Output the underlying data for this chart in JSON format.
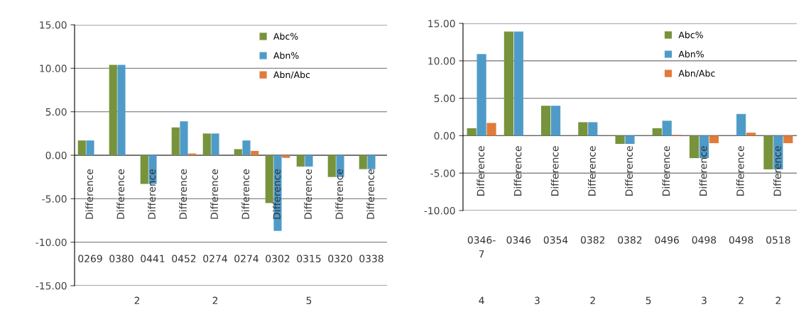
{
  "chart_data": [
    {
      "type": "bar",
      "categories": [
        "0269",
        "0380",
        "0441",
        "0452",
        "0274",
        "0274",
        "0302",
        "0315",
        "0320",
        "0338"
      ],
      "series": [
        {
          "name": "Abc%",
          "color": "#77933c",
          "values": [
            1.7,
            10.4,
            -3.3,
            3.2,
            2.5,
            0.7,
            -5.5,
            -1.3,
            -2.5,
            -1.6
          ]
        },
        {
          "name": "Abn%",
          "color": "#4f9bc8",
          "values": [
            1.7,
            10.4,
            -3.3,
            3.9,
            2.5,
            1.7,
            -8.7,
            -1.3,
            -2.5,
            -1.6
          ]
        },
        {
          "name": "Abn/Abc",
          "color": "#e07b39",
          "values": [
            0,
            0,
            0,
            0.2,
            0,
            0.5,
            -0.3,
            0,
            0,
            0
          ]
        }
      ],
      "annotations": [
        "Difference",
        "Difference",
        "Difference",
        "Difference",
        "Difference",
        "Difference",
        "Difference",
        "Difference",
        "Difference",
        "Difference",
        "2",
        "2",
        "5"
      ],
      "ylim": [
        -15,
        15
      ],
      "yticks": [
        {
          "value": -15,
          "label": "-15.00"
        },
        {
          "value": -10,
          "label": "-10.00"
        },
        {
          "value": -5,
          "label": "-5.00"
        },
        {
          "value": 0,
          "label": "0.00"
        },
        {
          "value": 5,
          "label": "5.00"
        },
        {
          "value": 10,
          "label": "10.00"
        },
        {
          "value": 15,
          "label": "15.00"
        }
      ],
      "grid": "y",
      "legend": "top right"
    },
    {
      "type": "bar",
      "categories": [
        "0346-\n7",
        "0346",
        "0354",
        "0382",
        "0382",
        "0496",
        "0498",
        "0498",
        "0518"
      ],
      "series": [
        {
          "name": "Abc%",
          "color": "#77933c",
          "values": [
            1.0,
            13.9,
            4.0,
            1.8,
            -1.1,
            1.0,
            -3.0,
            0,
            -4.5
          ]
        },
        {
          "name": "Abn%",
          "color": "#4f9bc8",
          "values": [
            10.9,
            13.9,
            4.0,
            1.8,
            -1.1,
            2.0,
            -3.0,
            2.9,
            -4.5
          ]
        },
        {
          "name": "Abn/Abc",
          "color": "#e07b39",
          "values": [
            1.7,
            0,
            0,
            0,
            0,
            0.1,
            -1.0,
            0.4,
            -1.0
          ]
        }
      ],
      "annotations": [
        "Difference",
        "Difference",
        "Difference",
        "Difference",
        "Difference",
        "Difference",
        "Difference",
        "Difference",
        "Difference",
        "4",
        "3",
        "2",
        "5",
        "3",
        "2",
        "2"
      ],
      "ylim": [
        -10,
        15
      ],
      "yticks": [
        {
          "value": -10,
          "label": "-10.00"
        },
        {
          "value": -5,
          "label": "-5.00"
        },
        {
          "value": 0,
          "label": "0.00"
        },
        {
          "value": 5,
          "label": "5.00"
        },
        {
          "value": 10,
          "label": "10.00"
        },
        {
          "value": 15,
          "label": "15.00"
        }
      ],
      "grid": "y",
      "legend": "top right"
    }
  ]
}
